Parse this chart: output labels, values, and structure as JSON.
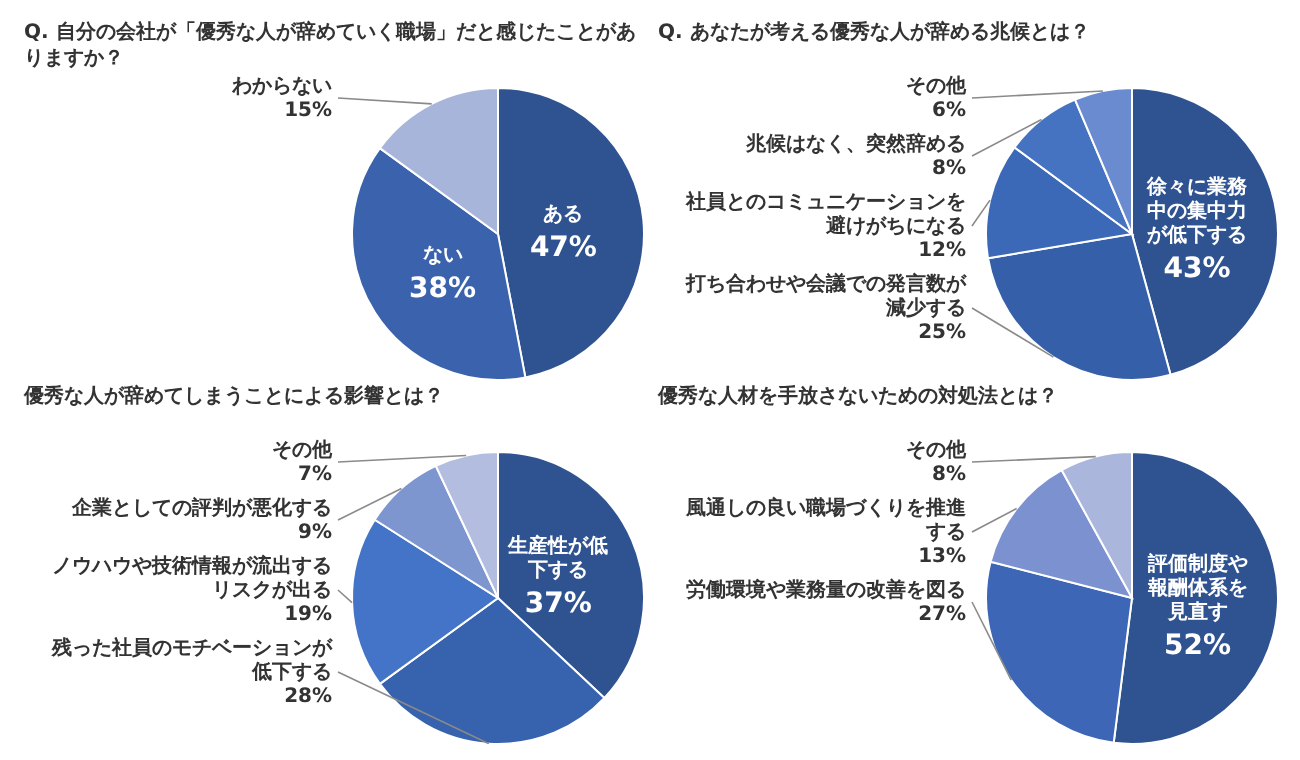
{
  "chart_data": [
    {
      "type": "pie",
      "title": "Q. 自分の会社が「優秀な人が辞めていく職場」だと感じたことがありますか？",
      "categories": [
        "ある",
        "ない",
        "わからない"
      ],
      "values": [
        47,
        38,
        15
      ],
      "value_labels": [
        "47%",
        "38%",
        "15%"
      ],
      "colors": [
        "#2f5391",
        "#3a62ad",
        "#a8b5da"
      ]
    },
    {
      "type": "pie",
      "title": "Q. あなたが考える優秀な人が辞める兆候とは？",
      "categories": [
        "徐々に業務中の集中力が低下する",
        "打ち合わせや会議での発言数が減少する",
        "社員とのコミュニケーションを避けがちになる",
        "兆候はなく、突然辞める",
        "その他"
      ],
      "values": [
        43,
        25,
        12,
        8,
        6
      ],
      "value_labels": [
        "43%",
        "25%",
        "12%",
        "8%",
        "6%"
      ],
      "colors": [
        "#2f5391",
        "#3560a9",
        "#3c69b7",
        "#4672c2",
        "#6a8bd0"
      ]
    },
    {
      "type": "pie",
      "title": "優秀な人が辞めてしまうことによる影響とは？",
      "categories": [
        "生産性が低下する",
        "残った社員のモチベーションが低下する",
        "ノウハウや技術情報が流出するリスクが出る",
        "企業としての評判が悪化する",
        "その他"
      ],
      "values": [
        37,
        28,
        19,
        9,
        7
      ],
      "value_labels": [
        "37%",
        "28%",
        "19%",
        "9%",
        "7%"
      ],
      "colors": [
        "#2f5391",
        "#3762ad",
        "#4474c7",
        "#7e96cf",
        "#b3bde0"
      ]
    },
    {
      "type": "pie",
      "title": "優秀な人材を手放さないための対処法とは？",
      "categories": [
        "評価制度や報酬体系を見直す",
        "労働環境や業務量の改善を図る",
        "風通しの良い職場づくりを推進する",
        "その他"
      ],
      "values": [
        52,
        27,
        13,
        8
      ],
      "value_labels": [
        "52%",
        "27%",
        "13%",
        "8%"
      ],
      "colors": [
        "#2f5391",
        "#3d67b6",
        "#7c92d0",
        "#aab6dc"
      ]
    }
  ]
}
